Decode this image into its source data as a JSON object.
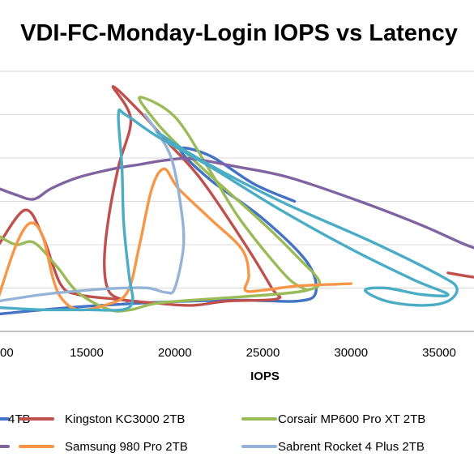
{
  "chart_data": {
    "type": "line",
    "title": "VDI-FC-Monday-Login IOPS vs Latency",
    "xlabel": "IOPS",
    "ylabel": "",
    "xlim": [
      10000,
      38000
    ],
    "x_ticks": [
      "15000",
      "20000",
      "25000",
      "30000",
      "35000"
    ],
    "x_tick_values": [
      15000,
      20000,
      25000,
      30000,
      35000
    ],
    "first_tick_fragment": "00",
    "y_grid_values": [
      1,
      2,
      3,
      4,
      5,
      6
    ],
    "ylim": [
      0,
      7
    ],
    "grid": true,
    "legend_position": "bottom",
    "series": [
      {
        "name": "4TB",
        "color": "#4472c4",
        "points": [
          [
            10000,
            0.4
          ],
          [
            14000,
            0.55
          ],
          [
            18000,
            0.65
          ],
          [
            21000,
            0.7
          ],
          [
            24000,
            0.72
          ],
          [
            27000,
            0.7
          ],
          [
            28000,
            0.9
          ],
          [
            27500,
            1.6
          ],
          [
            25000,
            2.6
          ],
          [
            22000,
            3.5
          ],
          [
            20300,
            4.2
          ],
          [
            22000,
            4.05
          ],
          [
            24500,
            3.4
          ],
          [
            26800,
            3.0
          ]
        ]
      },
      {
        "name": "Kingston KC3000 2TB",
        "color": "#c0504d",
        "points": [
          [
            10000,
            2.0
          ],
          [
            11500,
            2.8
          ],
          [
            12500,
            2.2
          ],
          [
            13500,
            1.1
          ],
          [
            14500,
            0.85
          ],
          [
            16500,
            0.75
          ],
          [
            19000,
            0.65
          ],
          [
            21000,
            0.6
          ],
          [
            23000,
            0.7
          ],
          [
            25800,
            0.75
          ],
          [
            25500,
            1.0
          ],
          [
            24000,
            2.0
          ],
          [
            21500,
            3.5
          ],
          [
            19500,
            4.4
          ],
          [
            18300,
            4.95
          ],
          [
            16500,
            5.65
          ],
          [
            17500,
            4.9
          ],
          [
            16800,
            3.8
          ],
          [
            16200,
            2.5
          ],
          [
            16000,
            1.5
          ],
          [
            16300,
            0.9
          ],
          [
            17300,
            0.7
          ]
        ]
      },
      {
        "name": "Corsair MP600 Pro XT 2TB",
        "color": "#9bbb59",
        "points": [
          [
            10000,
            2.2
          ],
          [
            11000,
            2.0
          ],
          [
            12000,
            2.05
          ],
          [
            13300,
            1.5
          ],
          [
            14500,
            0.9
          ],
          [
            16300,
            0.5
          ],
          [
            17500,
            0.5
          ],
          [
            19000,
            0.65
          ],
          [
            22000,
            0.75
          ],
          [
            25500,
            0.85
          ],
          [
            27500,
            0.95
          ],
          [
            28200,
            1.15
          ],
          [
            27000,
            1.7
          ],
          [
            25000,
            2.5
          ],
          [
            22000,
            3.6
          ],
          [
            20300,
            4.25
          ],
          [
            19000,
            4.8
          ],
          [
            18000,
            5.4
          ],
          [
            20000,
            4.95
          ],
          [
            22000,
            3.7
          ],
          [
            23500,
            2.7
          ],
          [
            25000,
            1.9
          ],
          [
            26500,
            1.2
          ],
          [
            27500,
            0.95
          ]
        ]
      },
      {
        "name": "",
        "color": "#8064a2",
        "points": [
          [
            10000,
            3.3
          ],
          [
            11000,
            3.15
          ],
          [
            12000,
            3.05
          ],
          [
            13000,
            3.3
          ],
          [
            14500,
            3.55
          ],
          [
            16500,
            3.75
          ],
          [
            18000,
            3.85
          ],
          [
            19500,
            3.95
          ],
          [
            21000,
            3.98
          ],
          [
            23500,
            3.8
          ],
          [
            26500,
            3.55
          ],
          [
            30500,
            3.0
          ],
          [
            34000,
            2.45
          ],
          [
            36500,
            2.0
          ],
          [
            38000,
            1.8
          ]
        ]
      },
      {
        "name": "Samsung 980 Pro 2TB",
        "color": "#f79646",
        "points": [
          [
            10000,
            0.8
          ],
          [
            11000,
            2.0
          ],
          [
            11800,
            2.5
          ],
          [
            12500,
            2.2
          ],
          [
            13100,
            1.2
          ],
          [
            13600,
            0.75
          ],
          [
            14500,
            0.5
          ],
          [
            16000,
            0.6
          ],
          [
            17300,
            0.9
          ],
          [
            18000,
            2.0
          ],
          [
            18700,
            3.3
          ],
          [
            19400,
            3.75
          ],
          [
            20200,
            3.3
          ],
          [
            22000,
            2.6
          ],
          [
            23800,
            1.9
          ],
          [
            24200,
            1.3
          ],
          [
            24000,
            0.95
          ],
          [
            25000,
            0.95
          ],
          [
            27000,
            1.05
          ],
          [
            30000,
            1.1
          ]
        ]
      },
      {
        "name": "Sabrent Rocket 4 Plus 2TB",
        "color": "#95b3d7",
        "points": [
          [
            10000,
            0.7
          ],
          [
            12500,
            0.85
          ],
          [
            15000,
            0.95
          ],
          [
            17000,
            1.0
          ],
          [
            18500,
            1.0
          ],
          [
            19500,
            0.9
          ],
          [
            20000,
            1.0
          ],
          [
            20500,
            2.0
          ],
          [
            20300,
            3.0
          ],
          [
            19800,
            4.0
          ],
          [
            19000,
            4.6
          ],
          [
            18300,
            5.0
          ]
        ]
      },
      {
        "name": "",
        "color": "#4bacc6",
        "points": [
          [
            10000,
            0.55
          ],
          [
            12500,
            0.5
          ],
          [
            15000,
            0.5
          ],
          [
            17000,
            0.5
          ],
          [
            17600,
            0.7
          ],
          [
            17400,
            1.3
          ],
          [
            17100,
            2.5
          ],
          [
            17000,
            3.8
          ],
          [
            16800,
            5.0
          ],
          [
            17200,
            5.0
          ],
          [
            19000,
            4.5
          ],
          [
            22000,
            3.8
          ],
          [
            26000,
            2.8
          ],
          [
            30000,
            1.9
          ],
          [
            33500,
            1.2
          ],
          [
            35500,
            0.85
          ],
          [
            34000,
            0.85
          ],
          [
            32000,
            1.0
          ],
          [
            30800,
            0.95
          ],
          [
            32000,
            0.7
          ],
          [
            34000,
            0.6
          ],
          [
            35500,
            0.7
          ],
          [
            36000,
            1.0
          ],
          [
            35000,
            1.3
          ],
          [
            31000,
            2.1
          ],
          [
            26000,
            3.0
          ],
          [
            21500,
            3.95
          ],
          [
            19000,
            4.6
          ]
        ]
      },
      {
        "name": "",
        "color": "#c0504d",
        "points": [
          [
            35500,
            1.35
          ],
          [
            37000,
            1.25
          ],
          [
            38000,
            1.25
          ]
        ]
      }
    ],
    "legend": [
      {
        "label": "4TB",
        "color": "#4472c4"
      },
      {
        "label": "Kingston KC3000 2TB",
        "color": "#c0504d"
      },
      {
        "label": "Corsair MP600 Pro XT 2TB",
        "color": "#9bbb59"
      },
      {
        "label": "",
        "color": "#8064a2"
      },
      {
        "label": "Samsung 980 Pro 2TB",
        "color": "#f79646"
      },
      {
        "label": "Sabrent Rocket 4 Plus 2TB",
        "color": "#95b3d7"
      }
    ]
  }
}
